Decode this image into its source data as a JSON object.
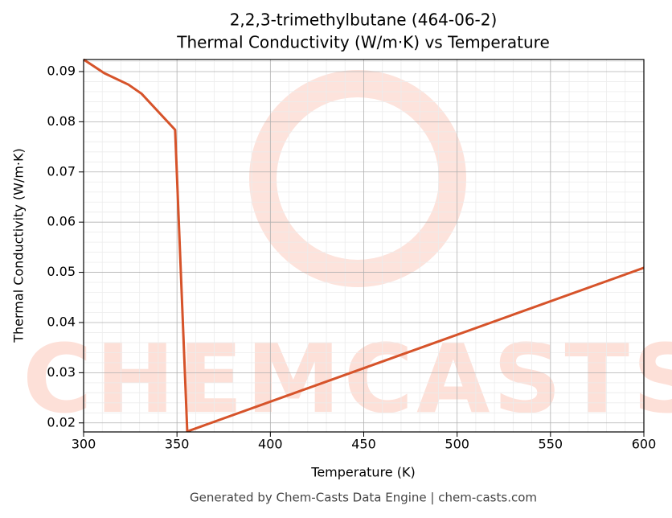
{
  "chart_data": {
    "type": "line",
    "title": "2,2,3-trimethylbutane (464-06-2)",
    "subtitle": "Thermal Conductivity (W/m·K) vs Temperature",
    "xlabel": "Temperature (K)",
    "ylabel": "Thermal Conductivity (W/m·K)",
    "footer": "Generated by Chem-Casts Data Engine | chem-casts.com",
    "watermark": "CHEMCASTS",
    "x": [
      300,
      311,
      324,
      331,
      349,
      355.5,
      600
    ],
    "series": [
      {
        "name": "Thermal Conductivity",
        "color": "#d6532a",
        "values": [
          0.0924,
          0.0897,
          0.0874,
          0.0856,
          0.0784,
          0.0183,
          0.0509
        ]
      }
    ],
    "xlim": [
      300,
      600
    ],
    "xticks": [
      300,
      350,
      400,
      450,
      500,
      550,
      600
    ],
    "ylim": [
      0.0182,
      0.0924
    ],
    "yticks": [
      0.02,
      0.03,
      0.04,
      0.05,
      0.06,
      0.07,
      0.08,
      0.09
    ],
    "grid": true
  }
}
